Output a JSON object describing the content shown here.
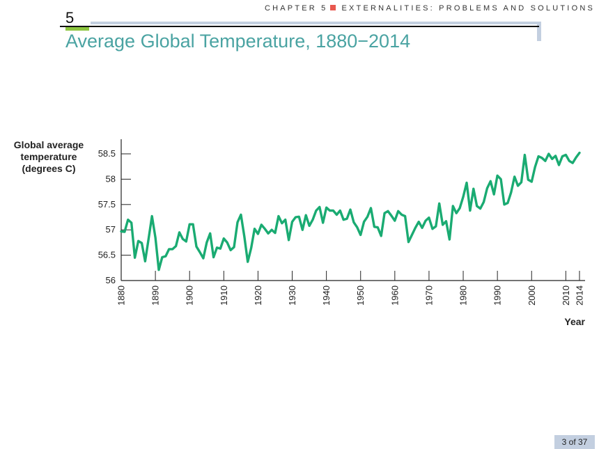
{
  "header": {
    "chapter_label": "CHAPTER 5",
    "chapter_title": "EXTERNALITIES: PROBLEMS AND SOLUTIONS",
    "chapter_number": "5"
  },
  "slide": {
    "title": "Average Global Temperature, 1880−2014",
    "page": "3 of 37"
  },
  "colors": {
    "title": "#4aa3a2",
    "line": "#1aab72",
    "bullet": "#e8584f",
    "accent_green": "#8dc63f",
    "header_bar": "#c3cfe0"
  },
  "chart_data": {
    "type": "line",
    "ylabel_lines": [
      "Global average",
      "temperature",
      "(degrees C)"
    ],
    "xlabel": "Year",
    "ylim": [
      56,
      58.5
    ],
    "xlim": [
      1880,
      2014
    ],
    "yticks": [
      56,
      56.5,
      57,
      57.5,
      58,
      58.5
    ],
    "ytick_labels": [
      "56",
      "56.5",
      "57",
      "57.5",
      "58",
      "58.5"
    ],
    "xticks": [
      1880,
      1890,
      1900,
      1910,
      1920,
      1930,
      1940,
      1950,
      1960,
      1970,
      1980,
      1990,
      2000,
      2010,
      2014
    ],
    "grid": false,
    "series": [
      {
        "x": [
          1880,
          1881,
          1882,
          1883,
          1884,
          1885,
          1886,
          1887,
          1888,
          1889,
          1890,
          1891,
          1892,
          1893,
          1894,
          1895,
          1896,
          1897,
          1898,
          1899,
          1900,
          1901,
          1902,
          1903,
          1904,
          1905,
          1906,
          1907,
          1908,
          1909,
          1910,
          1911,
          1912,
          1913,
          1914,
          1915,
          1916,
          1917,
          1918,
          1919,
          1920,
          1921,
          1922,
          1923,
          1924,
          1925,
          1926,
          1927,
          1928,
          1929,
          1930,
          1931,
          1932,
          1933,
          1934,
          1935,
          1936,
          1937,
          1938,
          1939,
          1940,
          1941,
          1942,
          1943,
          1944,
          1945,
          1946,
          1947,
          1948,
          1949,
          1950,
          1951,
          1952,
          1953,
          1954,
          1955,
          1956,
          1957,
          1958,
          1959,
          1960,
          1961,
          1962,
          1963,
          1964,
          1965,
          1966,
          1967,
          1968,
          1969,
          1970,
          1971,
          1972,
          1973,
          1974,
          1975,
          1976,
          1977,
          1978,
          1979,
          1980,
          1981,
          1982,
          1983,
          1984,
          1985,
          1986,
          1987,
          1988,
          1989,
          1990,
          1991,
          1992,
          1993,
          1994,
          1995,
          1996,
          1997,
          1998,
          1999,
          2000,
          2001,
          2002,
          2003,
          2004,
          2005,
          2006,
          2007,
          2008,
          2009,
          2010,
          2011,
          2012,
          2013,
          2014
        ],
        "values": [
          56.97,
          56.96,
          57.2,
          57.14,
          56.45,
          56.78,
          56.74,
          56.38,
          56.82,
          57.27,
          56.85,
          56.21,
          56.46,
          56.48,
          56.62,
          56.62,
          56.68,
          56.95,
          56.82,
          56.77,
          57.11,
          57.11,
          56.67,
          56.56,
          56.44,
          56.75,
          56.93,
          56.46,
          56.65,
          56.63,
          56.83,
          56.75,
          56.6,
          56.66,
          57.15,
          57.3,
          56.87,
          56.37,
          56.64,
          57.02,
          56.92,
          57.1,
          57.02,
          56.93,
          57.0,
          56.94,
          57.27,
          57.13,
          57.2,
          56.8,
          57.16,
          57.25,
          57.26,
          57.0,
          57.29,
          57.08,
          57.2,
          57.38,
          57.45,
          57.14,
          57.44,
          57.38,
          57.38,
          57.3,
          57.38,
          57.2,
          57.22,
          57.4,
          57.15,
          57.05,
          56.9,
          57.16,
          57.26,
          57.43,
          57.06,
          57.05,
          56.88,
          57.33,
          57.37,
          57.28,
          57.18,
          57.37,
          57.3,
          57.27,
          56.76,
          56.9,
          57.04,
          57.16,
          57.04,
          57.18,
          57.24,
          57.02,
          57.07,
          57.52,
          57.1,
          57.17,
          56.81,
          57.47,
          57.33,
          57.43,
          57.65,
          57.93,
          57.38,
          57.81,
          57.47,
          57.42,
          57.55,
          57.82,
          57.96,
          57.7,
          58.07,
          58.0,
          57.5,
          57.53,
          57.74,
          58.05,
          57.87,
          57.94,
          58.48,
          57.99,
          57.95,
          58.24,
          58.45,
          58.42,
          58.36,
          58.5,
          58.4,
          58.46,
          58.28,
          58.45,
          58.48,
          58.36,
          58.32,
          58.43,
          58.52
        ]
      }
    ]
  }
}
